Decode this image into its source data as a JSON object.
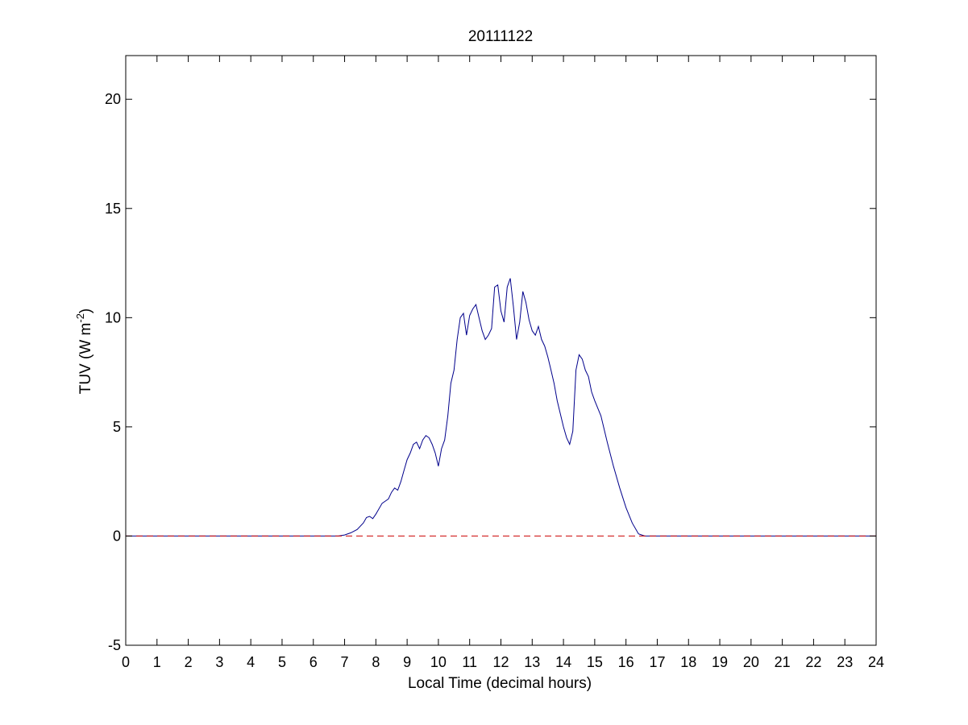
{
  "chart_data": {
    "type": "line",
    "title": "20111122",
    "xlabel": "Local Time (decimal hours)",
    "ylabel_parts": {
      "main": "TUV (W m",
      "exponent": "-2",
      "close": ")"
    },
    "xlim": [
      0,
      24
    ],
    "ylim": [
      -5,
      22
    ],
    "xticks": [
      "0",
      "1",
      "2",
      "3",
      "4",
      "5",
      "6",
      "7",
      "8",
      "9",
      "10",
      "11",
      "12",
      "13",
      "14",
      "15",
      "16",
      "17",
      "18",
      "19",
      "20",
      "21",
      "22",
      "23",
      "24"
    ],
    "yticks": [
      "-5",
      "0",
      "5",
      "10",
      "15",
      "20"
    ],
    "grid": false,
    "colors": {
      "series": "#00008b",
      "reference": "#cc0000"
    },
    "series": [
      {
        "style": "solid",
        "x": [
          0,
          6.8,
          7.0,
          7.2,
          7.4,
          7.6,
          7.7,
          7.8,
          7.9,
          8.0,
          8.2,
          8.3,
          8.4,
          8.5,
          8.6,
          8.7,
          8.8,
          8.9,
          9.0,
          9.1,
          9.2,
          9.3,
          9.4,
          9.5,
          9.6,
          9.7,
          9.8,
          9.9,
          10.0,
          10.1,
          10.2,
          10.3,
          10.4,
          10.5,
          10.6,
          10.7,
          10.8,
          10.9,
          11.0,
          11.1,
          11.2,
          11.3,
          11.4,
          11.5,
          11.6,
          11.7,
          11.8,
          11.9,
          12.0,
          12.1,
          12.2,
          12.3,
          12.4,
          12.5,
          12.6,
          12.7,
          12.8,
          12.9,
          13.0,
          13.1,
          13.2,
          13.3,
          13.4,
          13.5,
          13.6,
          13.7,
          13.8,
          13.9,
          14.0,
          14.1,
          14.2,
          14.3,
          14.4,
          14.5,
          14.6,
          14.7,
          14.8,
          14.9,
          15.0,
          15.2,
          15.4,
          15.6,
          15.8,
          16.0,
          16.2,
          16.4,
          16.6,
          16.8,
          17.0,
          17.2,
          24
        ],
        "y": [
          0,
          0,
          0.05,
          0.15,
          0.3,
          0.6,
          0.85,
          0.9,
          0.8,
          1.0,
          1.5,
          1.6,
          1.7,
          2.0,
          2.2,
          2.1,
          2.5,
          3.0,
          3.5,
          3.8,
          4.2,
          4.3,
          4.0,
          4.4,
          4.6,
          4.5,
          4.2,
          3.8,
          3.2,
          4.0,
          4.4,
          5.5,
          7.0,
          7.6,
          9.0,
          10.0,
          10.2,
          9.2,
          10.1,
          10.4,
          10.6,
          10.0,
          9.4,
          9.0,
          9.2,
          9.5,
          11.4,
          11.5,
          10.3,
          9.8,
          11.4,
          11.8,
          10.5,
          9.0,
          9.8,
          11.2,
          10.7,
          9.9,
          9.4,
          9.2,
          9.6,
          9.0,
          8.7,
          8.2,
          7.6,
          7.0,
          6.2,
          5.6,
          5.0,
          4.5,
          4.2,
          4.8,
          7.6,
          8.3,
          8.1,
          7.6,
          7.3,
          6.6,
          6.2,
          5.5,
          4.3,
          3.2,
          2.2,
          1.3,
          0.6,
          0.1,
          0,
          0,
          0,
          0,
          0
        ]
      },
      {
        "style": "dashed",
        "x": [
          0,
          24
        ],
        "y": [
          0,
          0
        ]
      }
    ]
  }
}
